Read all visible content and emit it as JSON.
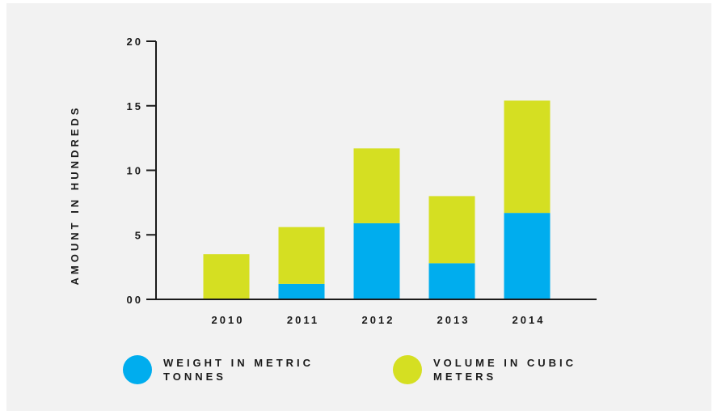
{
  "chart_data": {
    "type": "bar",
    "stacked": true,
    "ylabel": "AMOUNT IN HUNDREDS",
    "xlabel": "",
    "ylim": [
      0,
      20
    ],
    "yticks": [
      {
        "value": 0,
        "label": "00"
      },
      {
        "value": 5,
        "label": "5"
      },
      {
        "value": 10,
        "label": "10"
      },
      {
        "value": 15,
        "label": "15"
      },
      {
        "value": 20,
        "label": "20"
      }
    ],
    "categories": [
      "2010",
      "2011",
      "2012",
      "2013",
      "2014"
    ],
    "series": [
      {
        "name": "WEIGHT IN METRIC TONNES",
        "color": "#00adee",
        "values": [
          0,
          1.2,
          5.9,
          2.8,
          6.7
        ]
      },
      {
        "name": "VOLUME IN CUBIC METERS",
        "color": "#d5df22",
        "values": [
          3.5,
          4.4,
          5.8,
          5.2,
          8.7
        ]
      }
    ],
    "legend_position": "bottom",
    "grid": false
  }
}
